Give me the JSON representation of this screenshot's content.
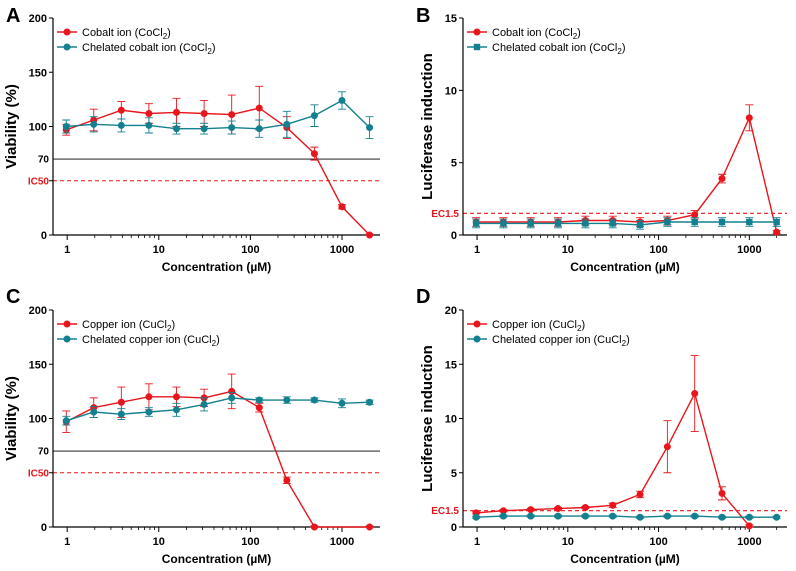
{
  "colors": {
    "red": "#e8161c",
    "teal": "#13808f",
    "grid": "#000000"
  },
  "chart_data": [
    {
      "id": "A",
      "panel_label": "A",
      "type": "line",
      "xscale": "log",
      "xlabel": "Concentration (µM)",
      "ylabel": "Viability (%)",
      "xticks": [
        1,
        10,
        100,
        1000
      ],
      "xtick_labels": [
        "1",
        "10",
        "100",
        "1000"
      ],
      "xlim": [
        0.7,
        2600
      ],
      "ylim": [
        0,
        200
      ],
      "yticks": [
        0,
        50,
        100,
        150,
        200
      ],
      "ytick_labels": [
        "0",
        "",
        "100",
        "150",
        "200"
      ],
      "x": [
        0.977,
        1.95,
        3.9,
        7.8,
        15.6,
        31.25,
        62.5,
        125,
        250,
        500,
        1000,
        2000
      ],
      "reference_lines": [
        {
          "y": 70,
          "label": "70",
          "style": "solid",
          "color": "grid"
        },
        {
          "y": 50,
          "label": "IC50",
          "style": "dashed",
          "color": "red"
        }
      ],
      "series": [
        {
          "name": "Cobalt ion",
          "formula": "(CoCl",
          "formula_sub": "2",
          "formula_end": ")",
          "marker": "circle",
          "color": "red",
          "values": [
            97,
            106,
            115,
            112,
            113,
            112,
            111,
            117,
            99,
            75,
            26,
            0
          ],
          "errors": [
            5,
            10,
            8,
            9,
            13,
            12,
            18,
            20,
            10,
            6,
            2,
            1
          ]
        },
        {
          "name": "Chelated cobalt ion",
          "formula": "(CoCl",
          "formula_sub": "2",
          "formula_end": ")",
          "marker": "circle",
          "color": "teal",
          "values": [
            100,
            102,
            101,
            101,
            98,
            98,
            99,
            98,
            102,
            110,
            124,
            99
          ],
          "errors": [
            6,
            7,
            6,
            7,
            5,
            5,
            6,
            8,
            12,
            10,
            8,
            10
          ]
        }
      ],
      "legend": "top-left"
    },
    {
      "id": "B",
      "panel_label": "B",
      "type": "line",
      "xscale": "log",
      "xlabel": "Concentration (µM)",
      "ylabel": "Luciferase induction",
      "xticks": [
        1,
        10,
        100,
        1000
      ],
      "xtick_labels": [
        "1",
        "10",
        "100",
        "1000"
      ],
      "xlim": [
        0.7,
        2600
      ],
      "ylim": [
        0,
        15
      ],
      "yticks": [
        0,
        5,
        10,
        15
      ],
      "ytick_labels": [
        "0",
        "5",
        "10",
        "15"
      ],
      "x": [
        0.977,
        1.95,
        3.9,
        7.8,
        15.6,
        31.25,
        62.5,
        125,
        250,
        500,
        1000,
        2000
      ],
      "reference_lines": [
        {
          "y": 1.5,
          "label": "EC1.5",
          "style": "dashed",
          "color": "red"
        }
      ],
      "series": [
        {
          "name": "Cobalt ion",
          "formula": "(CoCl",
          "formula_sub": "2",
          "formula_end": ")",
          "marker": "circle",
          "color": "red",
          "values": [
            0.9,
            0.9,
            0.9,
            0.9,
            1.0,
            1.0,
            0.9,
            1.0,
            1.4,
            3.9,
            8.1,
            0.2
          ],
          "errors": [
            0.3,
            0.3,
            0.3,
            0.3,
            0.3,
            0.3,
            0.3,
            0.3,
            0.3,
            0.3,
            0.9,
            0.1
          ]
        },
        {
          "name": "Chelated cobalt ion",
          "formula": "(CoCl",
          "formula_sub": "2",
          "formula_end": ")",
          "marker": "square",
          "color": "teal",
          "values": [
            0.8,
            0.8,
            0.8,
            0.8,
            0.8,
            0.8,
            0.7,
            0.9,
            0.9,
            0.9,
            0.9,
            0.9
          ],
          "errors": [
            0.3,
            0.3,
            0.3,
            0.3,
            0.3,
            0.3,
            0.3,
            0.3,
            0.3,
            0.3,
            0.3,
            0.3
          ]
        }
      ],
      "legend": "top-left"
    },
    {
      "id": "C",
      "panel_label": "C",
      "type": "line",
      "xscale": "log",
      "xlabel": "Concentration (µM)",
      "ylabel": "Viability (%)",
      "xticks": [
        1,
        10,
        100,
        1000
      ],
      "xtick_labels": [
        "1",
        "10",
        "100",
        "1000"
      ],
      "xlim": [
        0.7,
        2600
      ],
      "ylim": [
        0,
        200
      ],
      "yticks": [
        0,
        50,
        100,
        150,
        200
      ],
      "ytick_labels": [
        "0",
        "",
        "100",
        "150",
        "200"
      ],
      "x": [
        0.977,
        1.95,
        3.9,
        7.8,
        15.6,
        31.25,
        62.5,
        125,
        250,
        500,
        1000,
        2000
      ],
      "reference_lines": [
        {
          "y": 70,
          "label": "70",
          "style": "solid",
          "color": "grid"
        },
        {
          "y": 50,
          "label": "IC50",
          "style": "dashed",
          "color": "red"
        }
      ],
      "series": [
        {
          "name": "Copper ion",
          "formula": "(CuCl",
          "formula_sub": "2",
          "formula_end": ")",
          "marker": "circle",
          "color": "red",
          "values": [
            97,
            110,
            115,
            120,
            120,
            119,
            125,
            110,
            43,
            0,
            null,
            0
          ],
          "errors": [
            10,
            9,
            14,
            12,
            9,
            8,
            16,
            4,
            3,
            1,
            null,
            1
          ]
        },
        {
          "name": "Chelated copper ion",
          "formula": "(CuCl",
          "formula_sub": "2",
          "formula_end": ")",
          "marker": "circle",
          "color": "teal",
          "values": [
            98,
            106,
            104,
            106,
            108,
            113,
            119,
            117,
            117,
            117,
            114,
            115
          ],
          "errors": [
            4,
            5,
            5,
            4,
            6,
            6,
            5,
            2,
            3,
            2,
            4,
            2
          ]
        }
      ],
      "legend": "top-left"
    },
    {
      "id": "D",
      "panel_label": "D",
      "type": "line",
      "xscale": "log",
      "xlabel": "Concentration (µM)",
      "ylabel": "Luciferase induction",
      "xticks": [
        1,
        10,
        100,
        1000
      ],
      "xtick_labels": [
        "1",
        "10",
        "100",
        "1000"
      ],
      "xlim": [
        0.7,
        2600
      ],
      "ylim": [
        0,
        20
      ],
      "yticks": [
        0,
        5,
        10,
        15,
        20
      ],
      "ytick_labels": [
        "0",
        "5",
        "10",
        "15",
        "20"
      ],
      "x": [
        0.977,
        1.95,
        3.9,
        7.8,
        15.6,
        31.25,
        62.5,
        125,
        250,
        500,
        1000,
        2000
      ],
      "reference_lines": [
        {
          "y": 1.5,
          "label": "EC1.5",
          "style": "dashed",
          "color": "red"
        }
      ],
      "series": [
        {
          "name": "Copper ion",
          "formula": "(CuCl",
          "formula_sub": "2",
          "formula_end": ")",
          "marker": "circle",
          "color": "red",
          "values": [
            1.3,
            1.5,
            1.6,
            1.7,
            1.8,
            2.0,
            3.0,
            7.4,
            12.3,
            3.1,
            0.1,
            null
          ],
          "errors": [
            0.1,
            0.1,
            0.1,
            0.1,
            0.1,
            0.2,
            0.3,
            2.4,
            3.5,
            0.6,
            0.1,
            null
          ]
        },
        {
          "name": "Chelated copper ion",
          "formula": "(CuCl",
          "formula_sub": "2",
          "formula_end": ")",
          "marker": "circle",
          "color": "teal",
          "values": [
            0.9,
            1.0,
            1.0,
            1.0,
            1.0,
            1.0,
            0.9,
            1.0,
            1.0,
            0.9,
            0.9,
            0.9
          ],
          "errors": [
            0.1,
            0.1,
            0.1,
            0.1,
            0.1,
            0.1,
            0.1,
            0.1,
            0.1,
            0.1,
            0.1,
            0.1
          ]
        }
      ],
      "legend": "top-left"
    }
  ]
}
